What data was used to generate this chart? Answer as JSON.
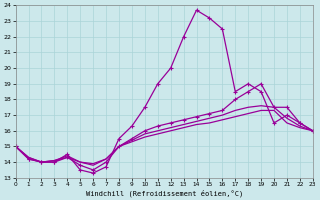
{
  "xlabel": "Windchill (Refroidissement éolien,°C)",
  "xlim": [
    0,
    23
  ],
  "ylim": [
    13,
    24
  ],
  "xticks": [
    0,
    1,
    2,
    3,
    4,
    5,
    6,
    7,
    8,
    9,
    10,
    11,
    12,
    13,
    14,
    15,
    16,
    17,
    18,
    19,
    20,
    21,
    22,
    23
  ],
  "yticks": [
    13,
    14,
    15,
    16,
    17,
    18,
    19,
    20,
    21,
    22,
    23,
    24
  ],
  "bg_color": "#cce8eb",
  "grid_color": "#aad4d8",
  "line_color": "#990099",
  "line1_y": [
    15.0,
    14.2,
    14.0,
    14.0,
    14.5,
    13.5,
    13.3,
    13.7,
    15.5,
    16.3,
    17.5,
    19.0,
    20.0,
    22.0,
    23.7,
    23.2,
    22.5,
    18.5,
    19.0,
    18.5,
    16.5,
    17.0,
    16.5,
    16.0
  ],
  "line2_y": [
    15.0,
    14.2,
    14.0,
    14.0,
    14.3,
    13.8,
    13.5,
    14.0,
    15.0,
    15.5,
    16.0,
    16.3,
    16.5,
    16.7,
    16.9,
    17.1,
    17.3,
    18.0,
    18.5,
    19.0,
    17.5,
    17.5,
    16.5,
    16.0
  ],
  "line3_y": [
    15.0,
    14.3,
    14.0,
    14.1,
    14.4,
    14.0,
    13.8,
    14.2,
    15.0,
    15.4,
    15.8,
    16.0,
    16.2,
    16.4,
    16.6,
    16.8,
    17.0,
    17.3,
    17.5,
    17.6,
    17.5,
    16.8,
    16.3,
    16.0
  ],
  "line4_y": [
    15.0,
    14.3,
    14.0,
    14.1,
    14.3,
    14.0,
    13.9,
    14.2,
    15.0,
    15.3,
    15.6,
    15.8,
    16.0,
    16.2,
    16.4,
    16.5,
    16.7,
    16.9,
    17.1,
    17.3,
    17.3,
    16.5,
    16.2,
    16.0
  ]
}
